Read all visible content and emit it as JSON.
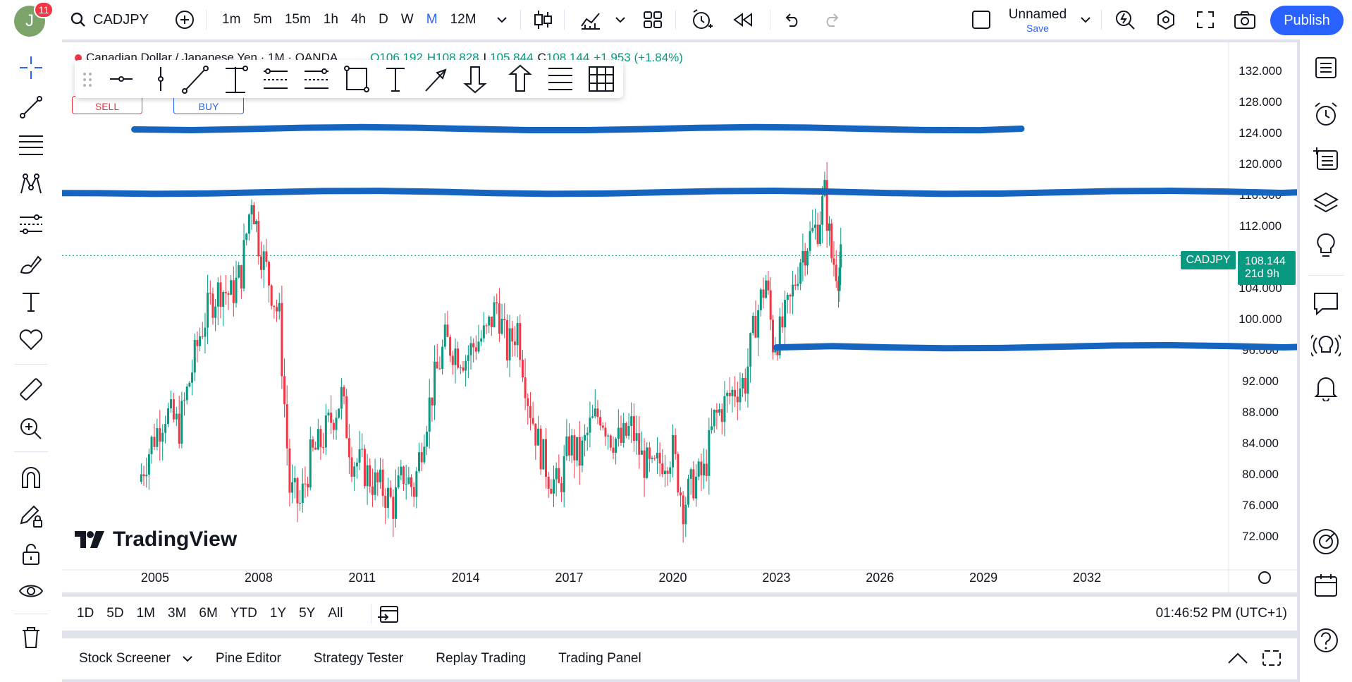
{
  "header": {
    "avatar_letter": "J",
    "notification_count": "11",
    "symbol": "CADJPY",
    "intervals": [
      "1m",
      "5m",
      "15m",
      "1h",
      "4h",
      "D",
      "W",
      "M",
      "12M"
    ],
    "active_interval": "M",
    "layout_name": "Unnamed",
    "layout_save": "Save",
    "publish_label": "Publish"
  },
  "legend": {
    "title": "Canadian Dollar / Japanese Yen · 1M · OANDA",
    "ohlc_o": "O106.192",
    "ohlc_h": "H108.828",
    "ohlc_l_label": "L",
    "ohlc_l": "105.844",
    "ohlc_c_label": "C",
    "ohlc_c": "108.144",
    "change": "+1.953 (+1.84%)",
    "sell_label": "SELL",
    "buy_label": "BUY"
  },
  "price_axis": {
    "ticks": [
      "132.000",
      "128.000",
      "124.000",
      "120.000",
      "116.000",
      "112.000",
      "104.000",
      "100.000",
      "96.000",
      "92.000",
      "88.000",
      "84.000",
      "80.000",
      "76.000",
      "72.000"
    ],
    "current_symbol": "CADJPY",
    "current_price": "108.144",
    "countdown": "21d 9h"
  },
  "time_axis": {
    "ticks": [
      "2005",
      "2008",
      "2011",
      "2014",
      "2017",
      "2020",
      "2023",
      "2026",
      "2029",
      "2032"
    ]
  },
  "watermark": "TradingView",
  "range_bar": {
    "ranges": [
      "1D",
      "5D",
      "1M",
      "3M",
      "6M",
      "YTD",
      "1Y",
      "5Y",
      "All"
    ],
    "clock": "01:46:52 PM (UTC+1)"
  },
  "bottom_tabs": [
    "Stock Screener",
    "Pine Editor",
    "Strategy Tester",
    "Replay Trading",
    "Trading Panel"
  ],
  "colors": {
    "up": "#089981",
    "down": "#f23645",
    "drawing": "#1565c0",
    "accent": "#2962ff"
  },
  "chart_data": {
    "type": "candlestick",
    "symbol": "CADJPY",
    "interval": "1M",
    "ylim": [
      70,
      134
    ],
    "x_range": [
      2003,
      2034
    ],
    "closes": [
      [
        2004.6,
        80
      ],
      [
        2004.9,
        84
      ],
      [
        2005.3,
        88
      ],
      [
        2005.7,
        86
      ],
      [
        2006.0,
        92
      ],
      [
        2006.3,
        98
      ],
      [
        2006.6,
        102
      ],
      [
        2006.9,
        104
      ],
      [
        2007.2,
        103
      ],
      [
        2007.5,
        106
      ],
      [
        2007.8,
        116
      ],
      [
        2008.0,
        110
      ],
      [
        2008.3,
        105
      ],
      [
        2008.6,
        100
      ],
      [
        2008.9,
        78
      ],
      [
        2009.2,
        76
      ],
      [
        2009.5,
        82
      ],
      [
        2009.8,
        84
      ],
      [
        2010.1,
        87
      ],
      [
        2010.4,
        90
      ],
      [
        2010.7,
        82
      ],
      [
        2011.0,
        81
      ],
      [
        2011.3,
        79
      ],
      [
        2011.6,
        78
      ],
      [
        2011.9,
        76
      ],
      [
        2012.2,
        80
      ],
      [
        2012.5,
        78
      ],
      [
        2012.8,
        86
      ],
      [
        2013.1,
        92
      ],
      [
        2013.4,
        97
      ],
      [
        2013.7,
        96
      ],
      [
        2014.0,
        95
      ],
      [
        2014.3,
        97
      ],
      [
        2014.6,
        98
      ],
      [
        2014.9,
        102
      ],
      [
        2015.2,
        96
      ],
      [
        2015.5,
        99
      ],
      [
        2015.8,
        90
      ],
      [
        2016.1,
        84
      ],
      [
        2016.4,
        80
      ],
      [
        2016.7,
        78
      ],
      [
        2017.0,
        84
      ],
      [
        2017.3,
        82
      ],
      [
        2017.6,
        86
      ],
      [
        2017.9,
        88
      ],
      [
        2018.2,
        85
      ],
      [
        2018.5,
        84
      ],
      [
        2018.8,
        86
      ],
      [
        2019.1,
        82
      ],
      [
        2019.4,
        80
      ],
      [
        2019.7,
        82
      ],
      [
        2020.0,
        83
      ],
      [
        2020.3,
        76
      ],
      [
        2020.6,
        79
      ],
      [
        2020.9,
        80
      ],
      [
        2021.2,
        87
      ],
      [
        2021.5,
        89
      ],
      [
        2021.8,
        91
      ],
      [
        2022.1,
        92
      ],
      [
        2022.4,
        100
      ],
      [
        2022.7,
        105
      ],
      [
        2022.9,
        97
      ],
      [
        2023.1,
        98
      ],
      [
        2023.4,
        102
      ],
      [
        2023.7,
        108
      ],
      [
        2023.9,
        110
      ],
      [
        2024.2,
        112
      ],
      [
        2024.4,
        116
      ],
      [
        2024.6,
        108
      ],
      [
        2024.8,
        106
      ],
      [
        2024.9,
        108.144
      ]
    ],
    "horizontal_lines": [
      124.5,
      116.3,
      96.4
    ],
    "grid": false
  }
}
